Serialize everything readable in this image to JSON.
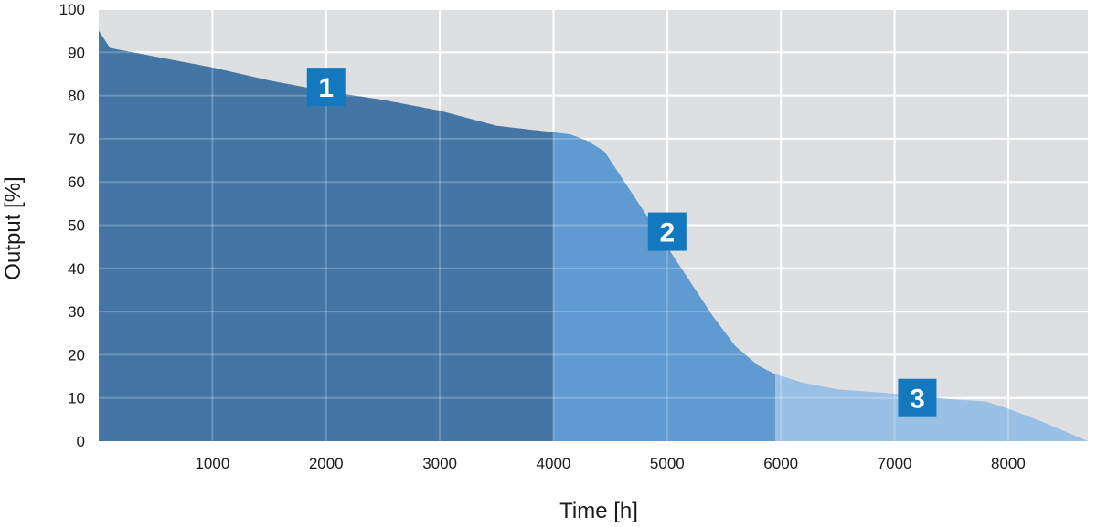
{
  "chart_data": {
    "type": "area",
    "xlabel": "Time [h]",
    "ylabel": "Output [%]",
    "xlim": [
      0,
      8700
    ],
    "ylim": [
      0,
      100
    ],
    "x_ticks": [
      "1000",
      "2000",
      "3000",
      "4000",
      "5000",
      "6000",
      "7000",
      "8000"
    ],
    "y_ticks": [
      "0",
      "10",
      "20",
      "30",
      "40",
      "50",
      "60",
      "70",
      "80",
      "90",
      "100"
    ],
    "grid": true,
    "curve": {
      "x": [
        0,
        50,
        100,
        200,
        500,
        1000,
        1500,
        2000,
        2500,
        3000,
        3500,
        4000,
        4150,
        4300,
        4450,
        4600,
        4800,
        5000,
        5200,
        5400,
        5600,
        5800,
        5950,
        6200,
        6500,
        7000,
        7500,
        7800,
        8000,
        8300,
        8700
      ],
      "y": [
        95,
        93,
        91,
        90.5,
        89,
        86.5,
        83.5,
        81,
        79,
        76.5,
        73,
        71.5,
        71,
        69.5,
        67,
        61,
        53,
        45,
        37,
        29,
        22,
        17.5,
        15.5,
        13.5,
        12,
        11,
        9.7,
        9.2,
        7.5,
        4.5,
        0
      ]
    },
    "regions": [
      {
        "label": "1",
        "x_start": 0,
        "x_end": 4000,
        "color": "#4476a5"
      },
      {
        "label": "2",
        "x_start": 4000,
        "x_end": 5950,
        "color": "#5f9ad0"
      },
      {
        "label": "3",
        "x_start": 5950,
        "x_end": 8700,
        "color": "#9bc0e6"
      }
    ],
    "badges": [
      {
        "label": "1",
        "x": 2000,
        "y": 82
      },
      {
        "label": "2",
        "x": 5000,
        "y": 48.5
      },
      {
        "label": "3",
        "x": 7200,
        "y": 10
      }
    ]
  },
  "colors": {
    "plot_background": "#dedfe1",
    "grid": "#ffffff",
    "badge": "#1478be",
    "text": "#1a1a1a"
  }
}
